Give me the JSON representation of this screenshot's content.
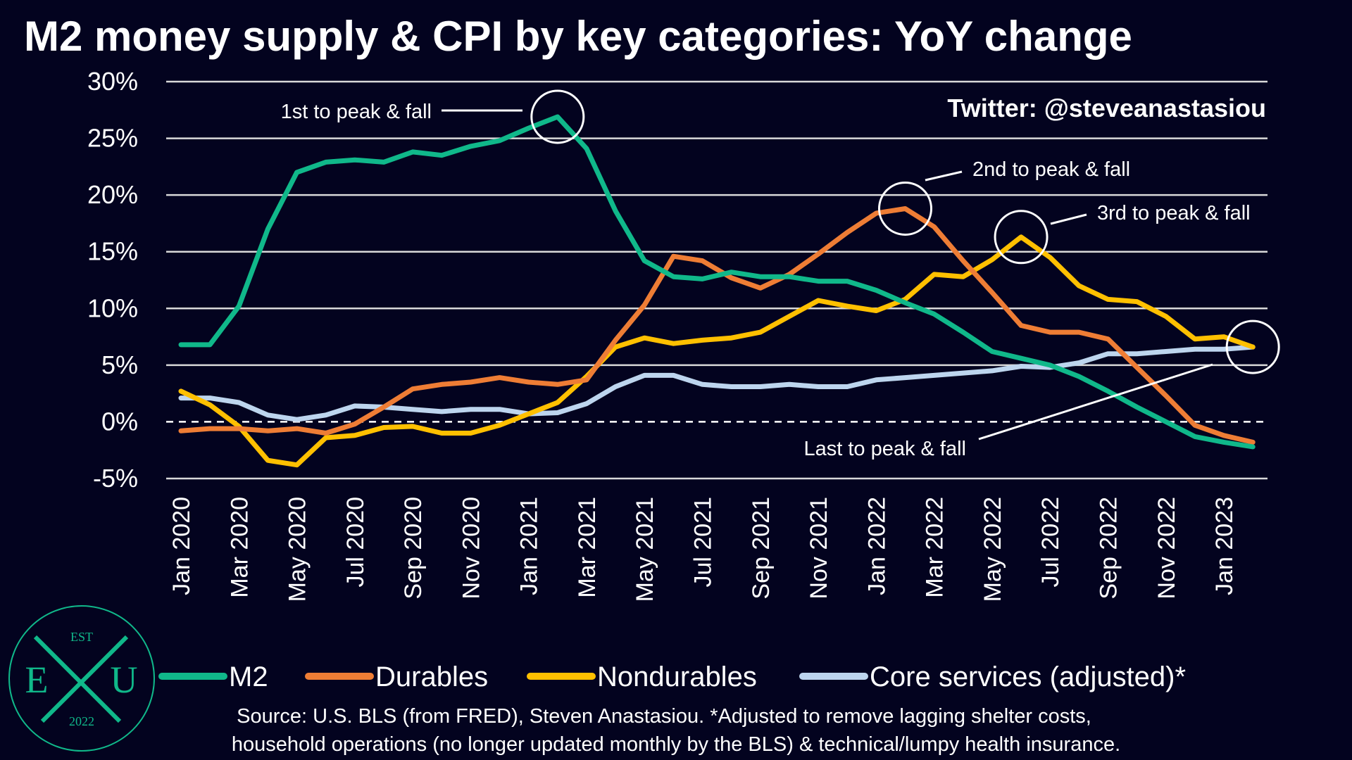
{
  "chart_data": {
    "type": "line",
    "title": "M2 money supply & CPI by key categories: YoY change",
    "xlabel": "",
    "ylabel": "",
    "ylim": [
      -5,
      30
    ],
    "yticks": [
      "30%",
      "25%",
      "20%",
      "15%",
      "10%",
      "5%",
      "0%",
      "-5%"
    ],
    "ytick_values": [
      30,
      25,
      20,
      15,
      10,
      5,
      0,
      -5
    ],
    "x": [
      "Jan 2020",
      "Feb 2020",
      "Mar 2020",
      "Apr 2020",
      "May 2020",
      "Jun 2020",
      "Jul 2020",
      "Aug 2020",
      "Sep 2020",
      "Oct 2020",
      "Nov 2020",
      "Dec 2020",
      "Jan 2021",
      "Feb 2021",
      "Mar 2021",
      "Apr 2021",
      "May 2021",
      "Jun 2021",
      "Jul 2021",
      "Aug 2021",
      "Sep 2021",
      "Oct 2021",
      "Nov 2021",
      "Dec 2021",
      "Jan 2022",
      "Feb 2022",
      "Mar 2022",
      "Apr 2022",
      "May 2022",
      "Jun 2022",
      "Jul 2022",
      "Aug 2022",
      "Sep 2022",
      "Oct 2022",
      "Nov 2022",
      "Dec 2022",
      "Jan 2023",
      "Feb 2023"
    ],
    "xticks": [
      "Jan 2020",
      "Mar 2020",
      "May 2020",
      "Jul 2020",
      "Sep 2020",
      "Nov 2020",
      "Jan 2021",
      "Mar 2021",
      "May 2021",
      "Jul 2021",
      "Sep 2021",
      "Nov 2021",
      "Jan 2022",
      "Mar 2022",
      "May 2022",
      "Jul 2022",
      "Sep 2022",
      "Nov 2022",
      "Jan 2023"
    ],
    "grid": true,
    "legend_position": "bottom",
    "series": [
      {
        "name": "M2",
        "color": "#10b88a",
        "values": [
          6.8,
          6.8,
          10.2,
          17,
          22,
          22.9,
          23.1,
          22.9,
          23.8,
          23.5,
          24.3,
          24.8,
          25.9,
          26.9,
          24.1,
          18.6,
          14.2,
          12.8,
          12.6,
          13.2,
          12.8,
          12.8,
          12.4,
          12.4,
          11.6,
          10.5,
          9.5,
          7.9,
          6.2,
          5.6,
          5.0,
          4.0,
          2.7,
          1.3,
          0.0,
          -1.3,
          -1.8,
          -2.2
        ]
      },
      {
        "name": "Durables",
        "color": "#ee7d35",
        "values": [
          -0.8,
          -0.6,
          -0.6,
          -0.8,
          -0.6,
          -1.0,
          -0.2,
          1.3,
          2.9,
          3.3,
          3.5,
          3.9,
          3.5,
          3.3,
          3.7,
          7.2,
          10.3,
          14.6,
          14.2,
          12.7,
          11.8,
          13.0,
          14.8,
          16.7,
          18.4,
          18.8,
          17.2,
          14.2,
          11.4,
          8.5,
          7.9,
          7.9,
          7.3,
          4.8,
          2.3,
          -0.3,
          -1.2,
          -1.8
        ]
      },
      {
        "name": "Nondurables",
        "color": "#ffc000",
        "values": [
          2.7,
          1.5,
          -0.4,
          -3.4,
          -3.8,
          -1.4,
          -1.2,
          -0.5,
          -0.4,
          -1.0,
          -1.0,
          -0.3,
          0.7,
          1.7,
          4.0,
          6.6,
          7.4,
          6.9,
          7.2,
          7.4,
          7.9,
          9.3,
          10.7,
          10.2,
          9.8,
          10.8,
          13.0,
          12.8,
          14.3,
          16.3,
          14.5,
          12.0,
          10.8,
          10.6,
          9.3,
          7.3,
          7.5,
          6.6
        ]
      },
      {
        "name": "Core services (adjusted)*",
        "color": "#bdd5ee",
        "values": [
          2.1,
          2.1,
          1.7,
          0.6,
          0.2,
          0.6,
          1.4,
          1.3,
          1.1,
          0.9,
          1.1,
          1.1,
          0.7,
          0.8,
          1.6,
          3.1,
          4.1,
          4.1,
          3.3,
          3.1,
          3.1,
          3.3,
          3.1,
          3.1,
          3.7,
          3.9,
          4.1,
          4.3,
          4.5,
          4.9,
          4.8,
          5.2,
          6.0,
          6.0,
          6.2,
          6.4,
          6.4,
          6.6
        ]
      }
    ],
    "annotations": [
      {
        "text": "1st to peak & fall",
        "series": "M2",
        "at": "Feb 2021"
      },
      {
        "text": "2nd to peak & fall",
        "series": "Durables",
        "at": "Feb 2022"
      },
      {
        "text": "3rd to peak & fall",
        "series": "Nondurables",
        "at": "Jun 2022"
      },
      {
        "text": "Last to peak & fall",
        "series": "Core services (adjusted)*",
        "at": "Feb 2023"
      }
    ]
  },
  "handle": "Twitter: @steveanastasiou",
  "source_line1": "Source: U.S. BLS (from FRED), Steven Anastasiou. *Adjusted to remove lagging shelter costs,",
  "source_line2": "household operations (no longer updated monthly by the BLS) & technical/lumpy health insurance.",
  "logo": {
    "top": "EST",
    "left": "E",
    "right": "U",
    "bottom": "2022"
  }
}
